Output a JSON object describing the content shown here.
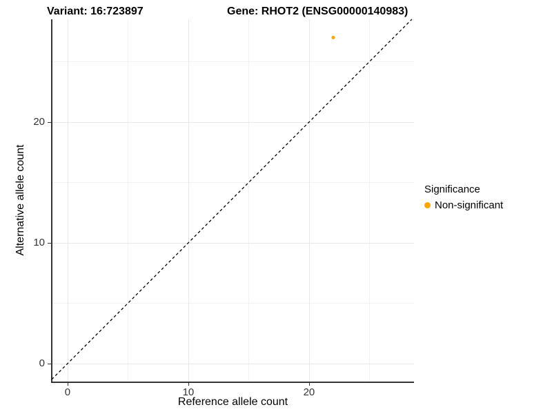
{
  "chart_data": {
    "type": "scatter",
    "title_left": "Variant: 16:723897",
    "title_right": "Gene: RHOT2 (ENSG00000140983)",
    "xlabel": "Reference allele count",
    "ylabel": "Alternative allele count",
    "xlim": [
      -1.31,
      28.69
    ],
    "ylim": [
      -1.49,
      28.51
    ],
    "x_ticks": {
      "major": [
        0,
        10,
        20
      ],
      "minor": [
        5,
        15,
        25
      ]
    },
    "y_ticks": {
      "major": [
        0,
        10,
        20
      ],
      "minor": [
        5,
        15,
        25
      ]
    },
    "grid": true,
    "reference_line": {
      "type": "identity",
      "equation": "y = x",
      "style": "dashed",
      "color": "#000000"
    },
    "series": [
      {
        "name": "Non-significant",
        "color": "#FFA500",
        "points": [
          {
            "x": 22,
            "y": 27
          }
        ]
      }
    ],
    "legend": {
      "title": "Significance",
      "position": "right",
      "items": [
        {
          "label": "Non-significant",
          "color": "#FFA500"
        }
      ]
    },
    "colors": {
      "background": "#FFFFFF",
      "gridline_major": "#E8E8E8",
      "gridline_minor": "#F2F2F2",
      "axis_line": "#333333",
      "tick_label": "#333333",
      "text": "#000000"
    }
  }
}
